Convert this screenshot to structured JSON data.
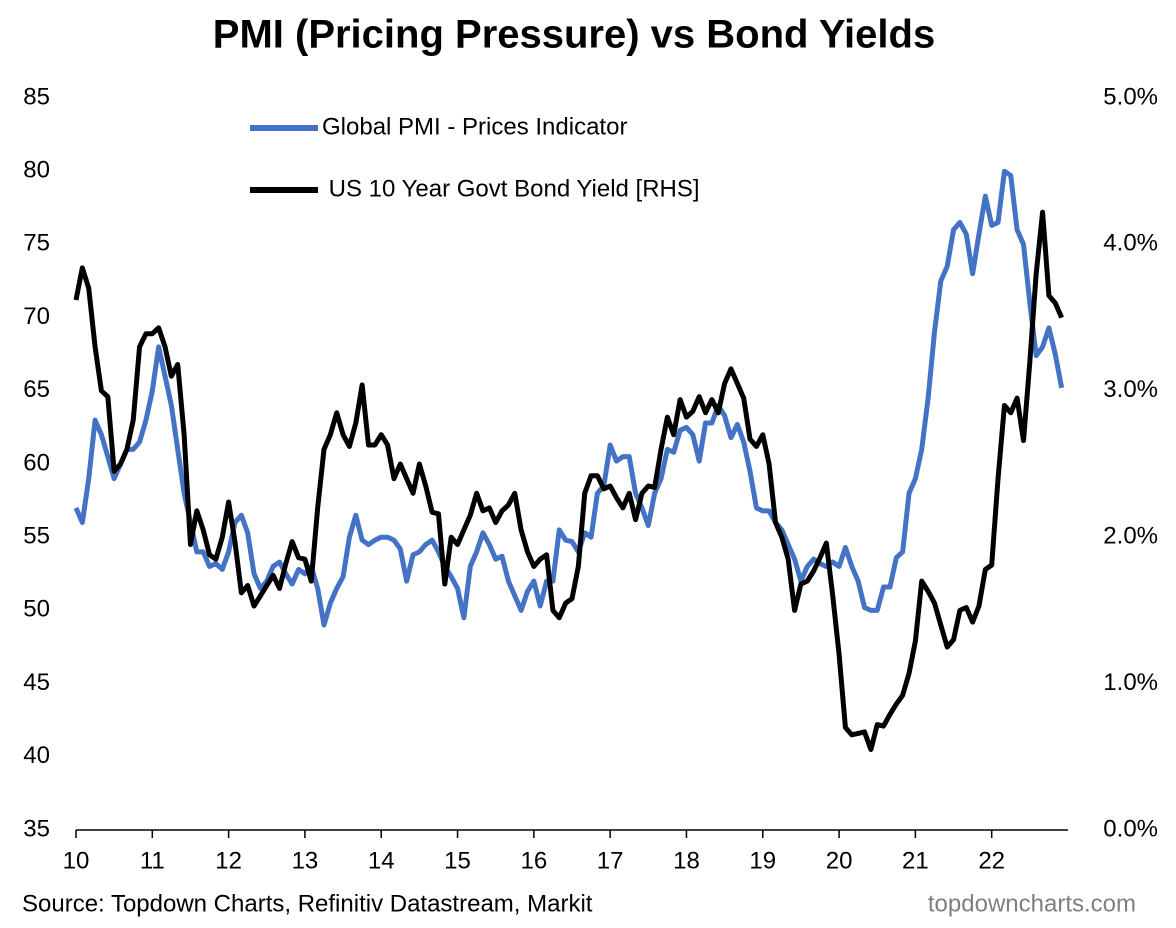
{
  "chart_data": {
    "type": "line",
    "title": "PMI (Pricing Pressure) vs Bond Yields",
    "source": "Source: Topdown Charts, Refinitiv Datastream, Markit",
    "watermark": "topdowncharts.com",
    "x": [
      2010,
      2010.083,
      2010.167,
      2010.25,
      2010.333,
      2010.417,
      2010.5,
      2010.583,
      2010.667,
      2010.75,
      2010.833,
      2010.917,
      2011,
      2011.083,
      2011.167,
      2011.25,
      2011.333,
      2011.417,
      2011.5,
      2011.583,
      2011.667,
      2011.75,
      2011.833,
      2011.917,
      2012,
      2012.083,
      2012.167,
      2012.25,
      2012.333,
      2012.417,
      2012.5,
      2012.583,
      2012.667,
      2012.75,
      2012.833,
      2012.917,
      2013,
      2013.083,
      2013.167,
      2013.25,
      2013.333,
      2013.417,
      2013.5,
      2013.583,
      2013.667,
      2013.75,
      2013.833,
      2013.917,
      2014,
      2014.083,
      2014.167,
      2014.25,
      2014.333,
      2014.417,
      2014.5,
      2014.583,
      2014.667,
      2014.75,
      2014.833,
      2014.917,
      2015,
      2015.083,
      2015.167,
      2015.25,
      2015.333,
      2015.417,
      2015.5,
      2015.583,
      2015.667,
      2015.75,
      2015.833,
      2015.917,
      2016,
      2016.083,
      2016.167,
      2016.25,
      2016.333,
      2016.417,
      2016.5,
      2016.583,
      2016.667,
      2016.75,
      2016.833,
      2016.917,
      2017,
      2017.083,
      2017.167,
      2017.25,
      2017.333,
      2017.417,
      2017.5,
      2017.583,
      2017.667,
      2017.75,
      2017.833,
      2017.917,
      2018,
      2018.083,
      2018.167,
      2018.25,
      2018.333,
      2018.417,
      2018.5,
      2018.583,
      2018.667,
      2018.75,
      2018.833,
      2018.917,
      2019,
      2019.083,
      2019.167,
      2019.25,
      2019.333,
      2019.417,
      2019.5,
      2019.583,
      2019.667,
      2019.75,
      2019.833,
      2019.917,
      2020,
      2020.083,
      2020.167,
      2020.25,
      2020.333,
      2020.417,
      2020.5,
      2020.583,
      2020.667,
      2020.75,
      2020.833,
      2020.917,
      2021,
      2021.083,
      2021.167,
      2021.25,
      2021.333,
      2021.417,
      2021.5,
      2021.583,
      2021.667,
      2021.75,
      2021.833,
      2021.917,
      2022,
      2022.083,
      2022.167,
      2022.25,
      2022.333,
      2022.417,
      2022.5,
      2022.583,
      2022.667,
      2022.75,
      2022.833,
      2022.917
    ],
    "series": [
      {
        "name": "Global PMI - Prices Indicator",
        "color": "#4472c4",
        "axis": "y",
        "values": [
          57,
          56,
          59,
          63,
          62,
          60.5,
          59,
          60,
          61,
          61,
          61.5,
          63,
          65,
          68,
          66,
          64,
          61,
          58,
          56,
          54,
          54,
          53,
          53.2,
          52.8,
          54,
          56,
          56.5,
          55.3,
          52.5,
          51.5,
          52,
          53,
          53.3,
          52.5,
          51.8,
          52.8,
          52.5,
          53,
          51.5,
          49,
          50.5,
          51.5,
          52.3,
          55,
          56.5,
          54.8,
          54.5,
          54.8,
          55,
          55,
          54.8,
          54.2,
          52,
          53.8,
          54,
          54.5,
          54.8,
          54,
          53,
          52.3,
          51.5,
          49.5,
          53,
          54,
          55.3,
          54.5,
          53.5,
          53.7,
          52,
          51,
          50,
          51.3,
          52,
          50.3,
          52,
          52,
          55.5,
          54.8,
          54.7,
          54,
          55.3,
          55,
          58,
          58.5,
          61.3,
          60.2,
          60.5,
          60.5,
          58,
          57,
          55.8,
          58,
          59,
          61,
          60.8,
          62.3,
          62.5,
          62,
          60.2,
          62.8,
          62.8,
          64,
          63.3,
          61.8,
          62.7,
          61.5,
          59.5,
          57,
          56.8,
          56.8,
          56,
          55.5,
          54.5,
          53.5,
          52,
          53,
          53.5,
          53.2,
          53,
          53.3,
          53,
          54.3,
          53,
          52,
          50.2,
          50,
          50,
          51.6,
          51.6,
          53.6,
          54,
          58,
          59,
          61,
          64.5,
          69,
          72.5,
          73.5,
          76,
          76.5,
          75.7,
          73,
          75.7,
          78.3,
          76.3,
          76.5,
          80,
          79.7,
          76,
          75,
          71,
          67.4,
          68,
          69.3,
          67.5,
          65.2
        ]
      },
      {
        "name": " US 10 Year Govt Bond Yield [RHS]",
        "color": "#000000",
        "axis": "y2",
        "values": [
          3.62,
          3.84,
          3.7,
          3.3,
          3.0,
          2.96,
          2.45,
          2.5,
          2.6,
          2.8,
          3.3,
          3.39,
          3.39,
          3.43,
          3.3,
          3.1,
          3.18,
          2.7,
          1.95,
          2.18,
          2.05,
          1.88,
          1.85,
          2.0,
          2.24,
          1.97,
          1.62,
          1.67,
          1.53,
          1.6,
          1.67,
          1.74,
          1.65,
          1.82,
          1.97,
          1.86,
          1.85,
          1.7,
          2.2,
          2.6,
          2.7,
          2.85,
          2.7,
          2.62,
          2.78,
          3.04,
          2.63,
          2.63,
          2.7,
          2.63,
          2.4,
          2.5,
          2.4,
          2.3,
          2.5,
          2.35,
          2.17,
          2.16,
          1.68,
          2.0,
          1.95,
          2.05,
          2.15,
          2.3,
          2.18,
          2.2,
          2.1,
          2.18,
          2.22,
          2.3,
          2.05,
          1.9,
          1.8,
          1.85,
          1.88,
          1.5,
          1.45,
          1.55,
          1.58,
          1.8,
          2.3,
          2.42,
          2.42,
          2.33,
          2.35,
          2.27,
          2.2,
          2.3,
          2.12,
          2.3,
          2.35,
          2.34,
          2.6,
          2.82,
          2.7,
          2.94,
          2.82,
          2.86,
          2.96,
          2.85,
          2.94,
          2.85,
          3.05,
          3.15,
          3.05,
          2.95,
          2.67,
          2.62,
          2.7,
          2.5,
          2.1,
          2.0,
          1.85,
          1.5,
          1.68,
          1.7,
          1.77,
          1.86,
          1.96,
          1.6,
          1.2,
          0.7,
          0.65,
          0.66,
          0.67,
          0.55,
          0.72,
          0.71,
          0.79,
          0.86,
          0.92,
          1.07,
          1.29,
          1.7,
          1.63,
          1.55,
          1.4,
          1.25,
          1.3,
          1.5,
          1.52,
          1.42,
          1.53,
          1.78,
          1.81,
          2.4,
          2.9,
          2.85,
          2.95,
          2.66,
          3.2,
          3.8,
          4.22,
          3.65,
          3.6,
          3.5
        ]
      }
    ],
    "xlim": [
      2010,
      2023
    ],
    "xticks": [
      {
        "value": 2010,
        "label": "10"
      },
      {
        "value": 2011,
        "label": "11"
      },
      {
        "value": 2012,
        "label": "12"
      },
      {
        "value": 2013,
        "label": "13"
      },
      {
        "value": 2014,
        "label": "14"
      },
      {
        "value": 2015,
        "label": "15"
      },
      {
        "value": 2016,
        "label": "16"
      },
      {
        "value": 2017,
        "label": "17"
      },
      {
        "value": 2018,
        "label": "18"
      },
      {
        "value": 2019,
        "label": "19"
      },
      {
        "value": 2020,
        "label": "20"
      },
      {
        "value": 2021,
        "label": "21"
      },
      {
        "value": 2022,
        "label": "22"
      }
    ],
    "ylim": [
      35,
      85
    ],
    "yticks": [
      35,
      40,
      45,
      50,
      55,
      60,
      65,
      70,
      75,
      80,
      85
    ],
    "y2lim": [
      0,
      5
    ],
    "y2ticks": [
      {
        "value": 0,
        "label": "0.0%"
      },
      {
        "value": 1,
        "label": "1.0%"
      },
      {
        "value": 2,
        "label": "2.0%"
      },
      {
        "value": 3,
        "label": "3.0%"
      },
      {
        "value": 4,
        "label": "4.0%"
      },
      {
        "value": 5,
        "label": "5.0%"
      }
    ],
    "grid": false,
    "legend": "top-left"
  }
}
